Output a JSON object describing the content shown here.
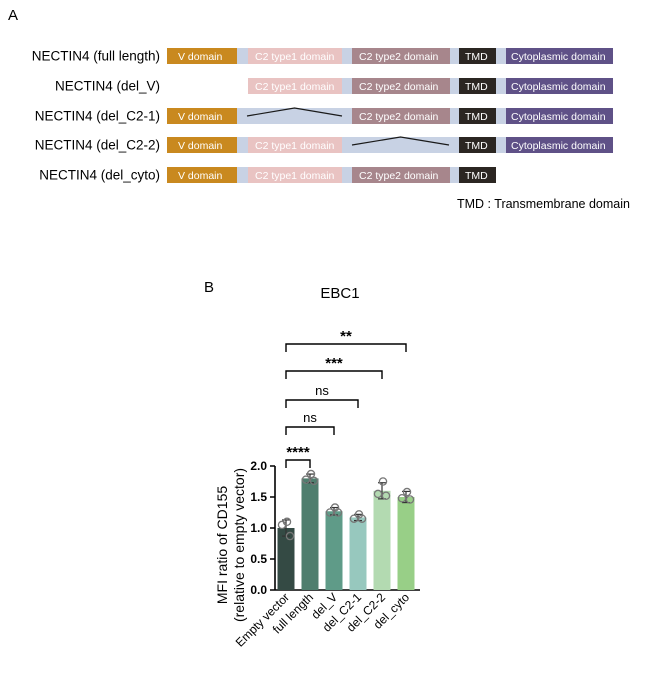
{
  "panel_a": {
    "label": "A",
    "domain_colors": {
      "V domain": "#c9891f",
      "C2 type1 domain": "#e9c3c2",
      "C2 type2 domain": "#a7868c",
      "TMD": "#2b2622",
      "Cytoplasmic domain": "#5f5187",
      "linker": "#c8d2e4"
    },
    "constructs": [
      {
        "name": "NECTIN4 (full length)",
        "domains": [
          "V domain",
          "C2 type1 domain",
          "C2 type2 domain",
          "TMD",
          "Cytoplasmic domain"
        ]
      },
      {
        "name": "NECTIN4 (del_V)",
        "domains": [
          "C2 type1 domain",
          "C2 type2 domain",
          "TMD",
          "Cytoplasmic domain"
        ]
      },
      {
        "name": "NECTIN4 (del_C2-1)",
        "domains": [
          "V domain",
          "C2 type2 domain",
          "TMD",
          "Cytoplasmic domain"
        ]
      },
      {
        "name": "NECTIN4 (del_C2-2)",
        "domains": [
          "V domain",
          "C2 type1 domain",
          "TMD",
          "Cytoplasmic domain"
        ]
      },
      {
        "name": "NECTIN4 (del_cyto)",
        "domains": [
          "V domain",
          "C2 type1 domain",
          "C2 type2 domain",
          "TMD"
        ]
      }
    ],
    "footnote": "TMD : Transmembrane domain"
  },
  "panel_b": {
    "label": "B"
  },
  "chart_data": {
    "type": "bar",
    "title": "EBC1",
    "ylabel_line1": "MFI ratio of CD155",
    "ylabel_line2": "(relative to empty vector)",
    "categories": [
      "Empty vector",
      "full length",
      "del_V",
      "del_C2-1",
      "del_C2-2",
      "del_cyto"
    ],
    "values": [
      1.0,
      1.8,
      1.27,
      1.17,
      1.6,
      1.5
    ],
    "errors": [
      0.13,
      0.07,
      0.06,
      0.05,
      0.13,
      0.09
    ],
    "points": [
      [
        1.1,
        1.05,
        0.87
      ],
      [
        1.87,
        1.78,
        1.76
      ],
      [
        1.33,
        1.25,
        1.25
      ],
      [
        1.22,
        1.15,
        1.15
      ],
      [
        1.75,
        1.55,
        1.52
      ],
      [
        1.58,
        1.48,
        1.46
      ]
    ],
    "colors": [
      "#344a44",
      "#4f7e6e",
      "#5f9b88",
      "#97c8be",
      "#b3dab1",
      "#98cf87"
    ],
    "ylim": [
      0,
      2.0
    ],
    "yticks": [
      "0.0",
      "0.5",
      "1.0",
      "1.5",
      "2.0"
    ],
    "significance": [
      {
        "from": 0,
        "to": 1,
        "label": "****"
      },
      {
        "from": 0,
        "to": 2,
        "label": "ns"
      },
      {
        "from": 0,
        "to": 3,
        "label": "ns"
      },
      {
        "from": 0,
        "to": 4,
        "label": "***"
      },
      {
        "from": 0,
        "to": 5,
        "label": "**"
      }
    ]
  }
}
